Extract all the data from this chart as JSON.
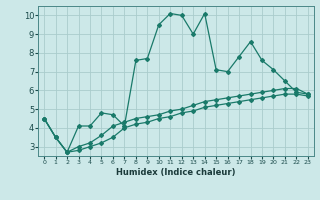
{
  "title": "",
  "xlabel": "Humidex (Indice chaleur)",
  "bg_color": "#cce8e8",
  "grid_color": "#aacccc",
  "line_color": "#1a7a6a",
  "xlim": [
    -0.5,
    23.5
  ],
  "ylim": [
    2.5,
    10.5
  ],
  "xticks": [
    0,
    1,
    2,
    3,
    4,
    5,
    6,
    7,
    8,
    9,
    10,
    11,
    12,
    13,
    14,
    15,
    16,
    17,
    18,
    19,
    20,
    21,
    22,
    23
  ],
  "yticks": [
    3,
    4,
    5,
    6,
    7,
    8,
    9,
    10
  ],
  "lines": [
    {
      "x": [
        0,
        1,
        2,
        3,
        4,
        5,
        6,
        7,
        8,
        9,
        10,
        11,
        12,
        13,
        14,
        15,
        16,
        17,
        18,
        19,
        20,
        21,
        22,
        23
      ],
      "y": [
        4.5,
        3.5,
        2.7,
        4.1,
        4.1,
        4.8,
        4.7,
        4.1,
        7.6,
        7.7,
        9.5,
        10.1,
        10.0,
        9.0,
        10.1,
        7.1,
        7.0,
        7.8,
        8.6,
        7.6,
        7.1,
        6.5,
        5.9,
        5.8
      ]
    },
    {
      "x": [
        0,
        1,
        2,
        3,
        4,
        5,
        6,
        7,
        8,
        9,
        10,
        11,
        12,
        13,
        14,
        15,
        16,
        17,
        18,
        19,
        20,
        21,
        22,
        23
      ],
      "y": [
        4.5,
        3.5,
        2.7,
        3.0,
        3.2,
        3.6,
        4.1,
        4.3,
        4.5,
        4.6,
        4.7,
        4.9,
        5.0,
        5.2,
        5.4,
        5.5,
        5.6,
        5.7,
        5.8,
        5.9,
        6.0,
        6.1,
        6.1,
        5.8
      ]
    },
    {
      "x": [
        0,
        1,
        2,
        3,
        4,
        5,
        6,
        7,
        8,
        9,
        10,
        11,
        12,
        13,
        14,
        15,
        16,
        17,
        18,
        19,
        20,
        21,
        22,
        23
      ],
      "y": [
        4.5,
        3.5,
        2.7,
        2.8,
        3.0,
        3.2,
        3.5,
        4.0,
        4.2,
        4.3,
        4.5,
        4.6,
        4.8,
        4.9,
        5.1,
        5.2,
        5.3,
        5.4,
        5.5,
        5.6,
        5.7,
        5.8,
        5.8,
        5.7
      ]
    }
  ]
}
